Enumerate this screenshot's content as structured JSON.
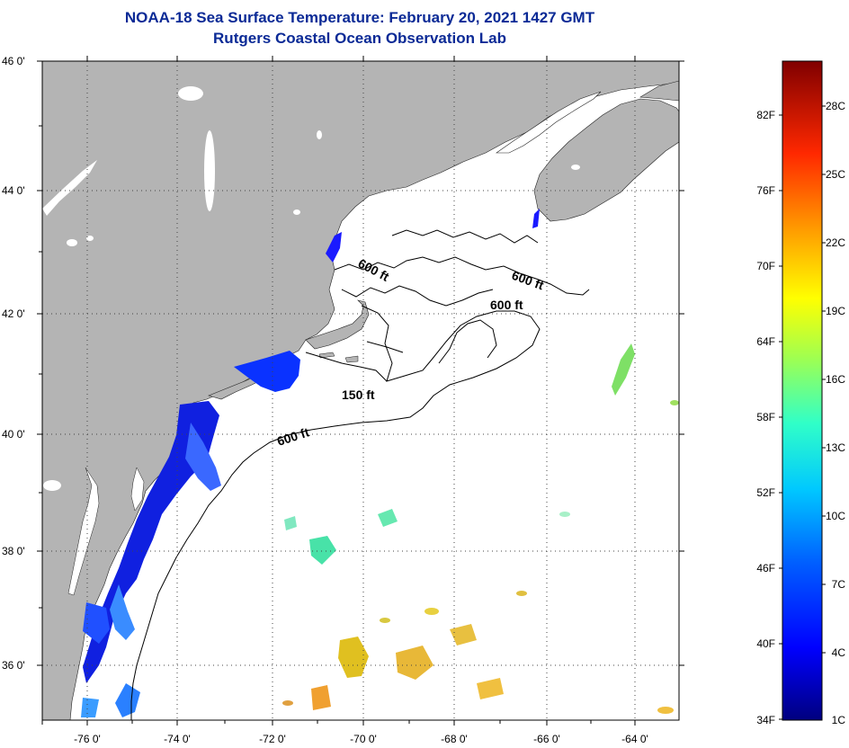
{
  "header": {
    "title": "NOAA-18 Sea Surface Temperature:  February 20, 2021 1427 GMT",
    "subtitle": "Rutgers Coastal Ocean Observation Lab"
  },
  "axes": {
    "lat_labels": [
      "46 0'",
      "44 0'",
      "42 0'",
      "40 0'",
      "38 0'",
      "36 0'"
    ],
    "lon_labels": [
      "-76 0'",
      "-74 0'",
      "-72 0'",
      "-70 0'",
      "-68 0'",
      "-66 0'",
      "-64 0'"
    ]
  },
  "contours": {
    "label_600_maine_west": "600 ft",
    "label_600_maine_east": "600 ft",
    "label_600_georges": "600 ft",
    "label_150": "150 ft",
    "label_600_shelf": "600 ft"
  },
  "colorbar": {
    "fahrenheit": [
      "82F",
      "76F",
      "70F",
      "64F",
      "58F",
      "52F",
      "46F",
      "40F",
      "34F"
    ],
    "celsius": [
      "28C",
      "25C",
      "22C",
      "19C",
      "16C",
      "13C",
      "10C",
      "7C",
      "4C",
      "1C"
    ]
  },
  "colors": {
    "land": "#b4b4b4",
    "ocean": "#ffffff",
    "title": "#0b2a96"
  }
}
